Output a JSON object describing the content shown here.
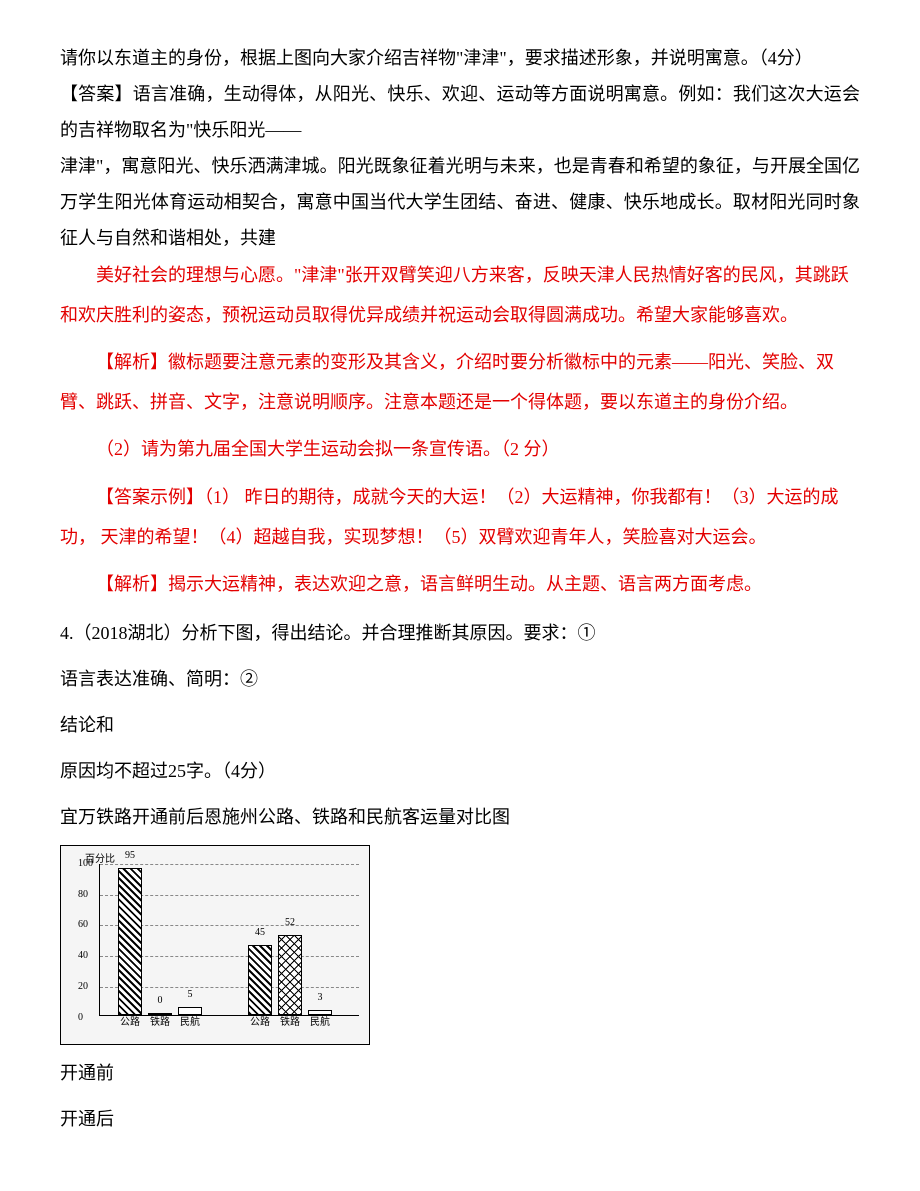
{
  "top": {
    "line1": "请你以东道主的身份，根据上图向大家介绍吉祥物\"津津\"，要求描述形象，并说明寓意。（4分）",
    "line2": "【答案】语言准确，生动得体，从阳光、快乐、欢迎、运动等方面说明寓意。例如：我们这次大运会的吉祥物取名为\"快乐阳光——",
    "line3": "津津\"，寓意阳光、快乐洒满津城。阳光既象征着光明与未来，也是青春和希望的象征，与开展全国亿万学生阳光体育运动相契合，寓意中国当代大学生团结、奋进、健康、快乐地成长。取材阳光同时象征人与自然和谐相处，共建"
  },
  "red": {
    "r1": "美好社会的理想与心愿。\"津津\"张开双臂笑迎八方来客，反映天津人民热情好客的民风，其跳跃和欢庆胜利的姿态，预祝运动员取得优异成绩并祝运动会取得圆满成功。希望大家能够喜欢。",
    "r2": "【解析】徽标题要注意元素的变形及其含义，介绍时要分析徽标中的元素——阳光、笑脸、双臂、跳跃、拼音、文字，注意说明顺序。注意本题还是一个得体题，要以东道主的身份介绍。",
    "r3": "（2）请为第九届全国大学生运动会拟一条宣传语。（2 分）",
    "r4": "【答案示例】（1）  昨日的期待，成就今天的大运！（2）大运精神，你我都有！（3）大运的成功，  天津的希望！（4）超越自我，实现梦想！（5）双臂欢迎青年人，笑脸喜对大运会。",
    "r5": "【解析】揭示大运精神，表达欢迎之意，语言鲜明生动。从主题、语言两方面考虑。"
  },
  "q4": {
    "title": "4.（2018湖北）分析下图，得出结论。并合理推断其原因。要求：①",
    "req": " 语言表达准确、简明：②",
    "concl": "结论和",
    "limit": "原因均不超过25字。（4分）",
    "chartTitle": " 宜万铁路开通前后恩施州公路、铁路和民航客运量对比图",
    "before": " 开通前",
    "after": " 开通后"
  },
  "chart": {
    "ylabel": "百分比",
    "ymax": 100,
    "yticks": [
      0,
      20,
      40,
      60,
      80,
      100
    ],
    "groups": {
      "before": {
        "bars": [
          {
            "label": "公路",
            "value": 95,
            "style": "hatched",
            "topLabel": "95"
          },
          {
            "label": "铁路",
            "value": 0,
            "style": "white",
            "topLabel": "0"
          },
          {
            "label": "民航",
            "value": 5,
            "style": "white",
            "topLabel": "5"
          }
        ]
      },
      "after": {
        "bars": [
          {
            "label": "公路",
            "value": 45,
            "style": "hatched",
            "topLabel": "45"
          },
          {
            "label": "铁路",
            "value": 52,
            "style": "cross",
            "topLabel": "52"
          },
          {
            "label": "民航",
            "value": 3,
            "style": "white",
            "topLabel": "3"
          }
        ]
      }
    },
    "xlabels": [
      "公路",
      "铁路",
      "民航",
      "公路",
      "铁路",
      "民航"
    ],
    "bg": "#f5f5f5",
    "border": "#000000"
  }
}
